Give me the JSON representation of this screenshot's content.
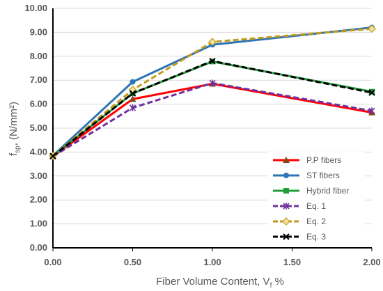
{
  "chart_data": {
    "type": "line",
    "x": [
      0.0,
      0.5,
      1.0,
      2.0
    ],
    "xticks": [
      "0.00",
      "0.50",
      "1.00",
      "1.50",
      "2.00"
    ],
    "xtick_values": [
      0,
      0.5,
      1.0,
      1.5,
      2.0
    ],
    "yticks": [
      "0.00",
      "1.00",
      "2.00",
      "3.00",
      "4.00",
      "5.00",
      "6.00",
      "7.00",
      "8.00",
      "9.00",
      "10.00"
    ],
    "ytick_values": [
      0,
      1,
      2,
      3,
      4,
      5,
      6,
      7,
      8,
      9,
      10
    ],
    "xlim": [
      0,
      2
    ],
    "ylim": [
      0,
      10
    ],
    "grid": "horizontal",
    "legend_position": "bottom-right",
    "xlabel": {
      "main": "Fiber Volume Content, V",
      "sub": "f",
      "tail": " %"
    },
    "ylabel": {
      "main": "f",
      "sub": "sp",
      "tail": ", (N/mm²)"
    },
    "series": [
      {
        "name": "P.P fibers",
        "values": [
          3.82,
          6.21,
          6.85,
          5.65
        ],
        "color": "#ff0000",
        "dash": "solid",
        "marker": "triangle",
        "marker_color": "#8b4513"
      },
      {
        "name": "ST fibers",
        "values": [
          3.85,
          6.93,
          8.48,
          9.2
        ],
        "color": "#2e75b6",
        "dash": "solid",
        "marker": "circle",
        "marker_color": "#2e75b6"
      },
      {
        "name": "Hybrid fiber",
        "values": [
          3.84,
          6.45,
          7.78,
          6.52
        ],
        "color": "#1f9e3a",
        "dash": "solid",
        "marker": "square",
        "marker_color": "#1f9e3a"
      },
      {
        "name": "Eq. 1",
        "values": [
          3.82,
          5.85,
          6.88,
          5.72
        ],
        "color": "#7030a0",
        "dash": "dashed",
        "marker": "star",
        "marker_color": "#7030a0"
      },
      {
        "name": "Eq. 2",
        "values": [
          3.84,
          6.6,
          8.6,
          9.15
        ],
        "color": "#c09a1a",
        "dash": "dashed",
        "marker": "diamond",
        "marker_color": "#c09a1a"
      },
      {
        "name": "Eq. 3",
        "values": [
          3.83,
          6.45,
          7.8,
          6.48
        ],
        "color": "#000000",
        "dash": "dashed",
        "marker": "x",
        "marker_color": "#000000"
      }
    ]
  }
}
